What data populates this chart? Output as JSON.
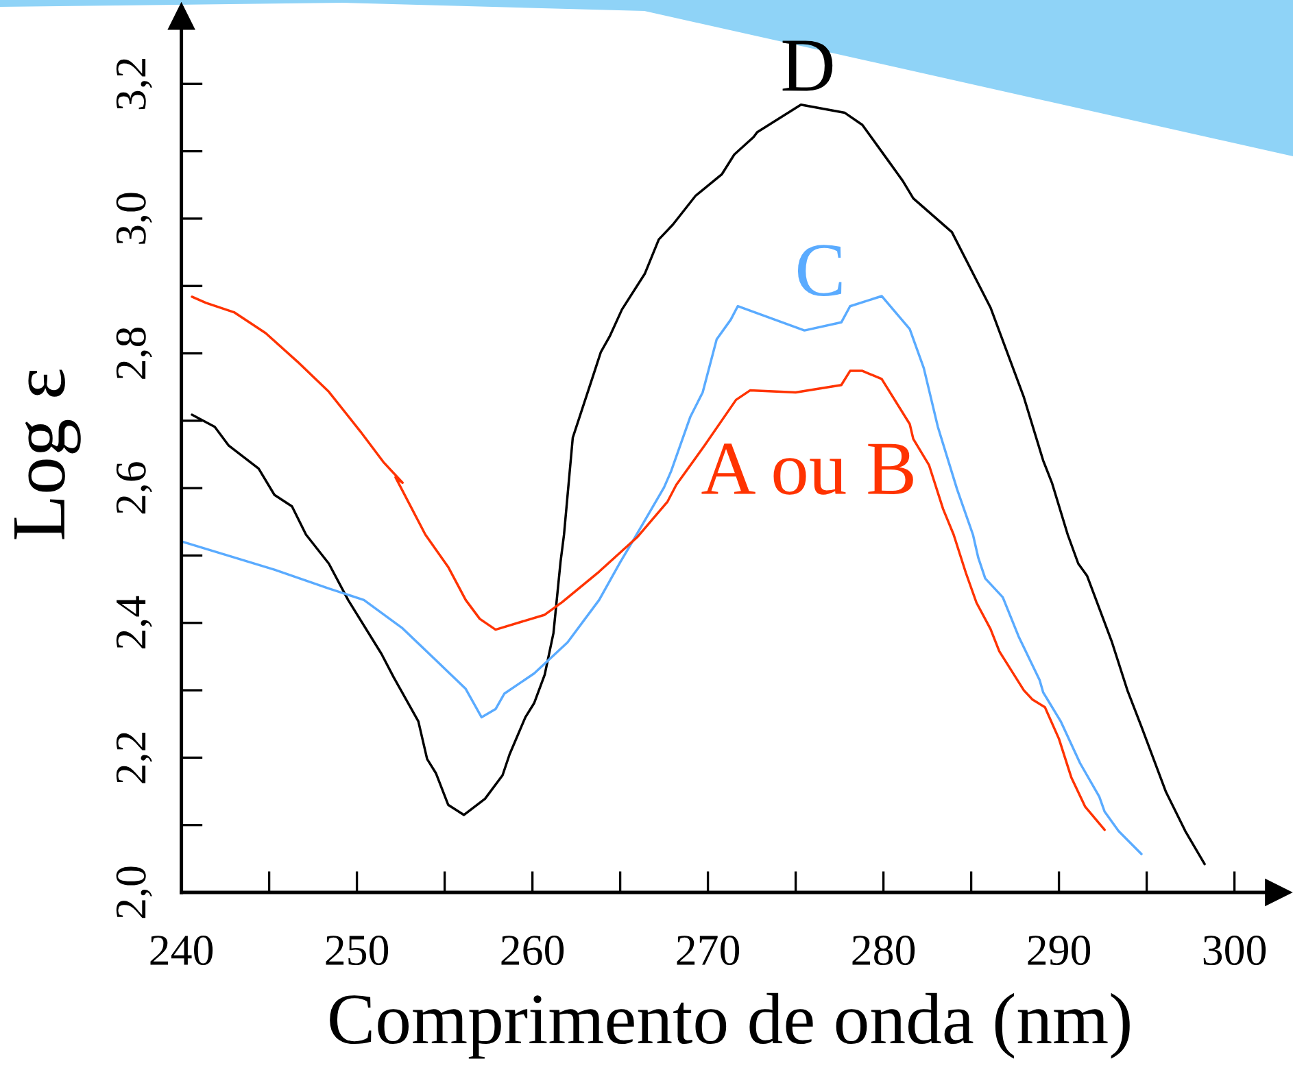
{
  "chart_data": {
    "type": "line",
    "xlabel": "Comprimento de onda (nm)",
    "ylabel": "Log ε",
    "xlim": [
      240,
      302.5
    ],
    "ylim": [
      2.0,
      3.3
    ],
    "xticks": [
      240,
      {
        "value": 245,
        "label": null
      },
      250,
      {
        "value": 255,
        "label": null
      },
      260,
      {
        "value": 265,
        "label": null
      },
      270,
      {
        "value": 275,
        "label": null
      },
      280,
      {
        "value": 285,
        "label": null
      },
      290,
      {
        "value": 295,
        "label": null
      },
      300
    ],
    "yticks": [
      {
        "value": 2.0,
        "label": "2,0"
      },
      {
        "value": 2.1,
        "label": null
      },
      {
        "value": 2.2,
        "label": "2,2"
      },
      {
        "value": 2.3,
        "label": null
      },
      {
        "value": 2.4,
        "label": "2,4"
      },
      {
        "value": 2.5,
        "label": null
      },
      {
        "value": 2.6,
        "label": "2,6"
      },
      {
        "value": 2.7,
        "label": null
      },
      {
        "value": 2.8,
        "label": "2,8"
      },
      {
        "value": 2.9,
        "label": null
      },
      {
        "value": 3.0,
        "label": "3,0"
      },
      {
        "value": 3.1,
        "label": null
      },
      {
        "value": 3.2,
        "label": "3,2"
      }
    ],
    "series": [
      {
        "name": "D",
        "color": "#000000",
        "x": [
          240.6,
          241.9,
          242.7,
          244.4,
          245.3,
          246.3,
          247.1,
          248.4,
          249.5,
          251.4,
          252.1,
          253.5,
          254.0,
          254.5,
          255.2,
          256.1,
          257.3,
          258.3,
          258.7,
          259.6,
          260.1,
          260.7,
          261.2,
          261.6,
          261.8,
          262.3,
          263.6,
          263.9,
          264.4,
          265.1,
          266.4,
          267.2,
          268.0,
          269.3,
          270.8,
          271.5,
          272.6,
          272.8,
          275.3,
          277.8,
          278.8,
          280.3,
          281.1,
          281.7,
          283.9,
          286.1,
          288.0,
          289.1,
          289.6,
          290.5,
          291.1,
          291.6,
          293.0,
          293.9,
          294.7,
          296.1,
          297.2,
          298.3
        ],
        "values": [
          2.709,
          2.691,
          2.663,
          2.629,
          2.59,
          2.573,
          2.531,
          2.488,
          2.434,
          2.354,
          2.319,
          2.254,
          2.198,
          2.177,
          2.13,
          2.115,
          2.139,
          2.174,
          2.205,
          2.26,
          2.281,
          2.323,
          2.385,
          2.49,
          2.531,
          2.675,
          2.778,
          2.802,
          2.825,
          2.865,
          2.918,
          2.969,
          2.991,
          3.034,
          3.066,
          3.095,
          3.121,
          3.128,
          3.169,
          3.157,
          3.139,
          3.085,
          3.056,
          3.03,
          2.98,
          2.868,
          2.735,
          2.641,
          2.608,
          2.531,
          2.488,
          2.47,
          2.373,
          2.3,
          2.246,
          2.149,
          2.091,
          2.042
        ]
      },
      {
        "name": "C",
        "color": "#5aabff",
        "x": [
          240.0,
          245.3,
          248.4,
          250.4,
          252.6,
          254.4,
          256.2,
          257.1,
          257.9,
          258.4,
          260.1,
          262.0,
          263.8,
          265.0,
          265.8,
          267.5,
          267.9,
          269.0,
          269.7,
          270.5,
          271.3,
          271.7,
          275.5,
          277.6,
          278.1,
          279.9,
          281.5,
          282.3,
          283.1,
          284.2,
          285.1,
          285.4,
          285.8,
          286.8,
          287.7,
          288.9,
          289.1,
          290.1,
          291.2,
          292.3,
          292.6,
          293.4,
          294.7
        ],
        "values": [
          2.521,
          2.479,
          2.451,
          2.434,
          2.392,
          2.347,
          2.302,
          2.26,
          2.272,
          2.295,
          2.325,
          2.371,
          2.434,
          2.49,
          2.525,
          2.601,
          2.625,
          2.706,
          2.742,
          2.821,
          2.85,
          2.87,
          2.834,
          2.846,
          2.87,
          2.885,
          2.836,
          2.778,
          2.691,
          2.598,
          2.531,
          2.497,
          2.466,
          2.438,
          2.38,
          2.315,
          2.297,
          2.254,
          2.192,
          2.142,
          2.12,
          2.091,
          2.057
        ]
      },
      {
        "name": "A ou B",
        "color": "#ff3300",
        "x": [
          240.6,
          241.4,
          243.0,
          244.8,
          246.6,
          248.4,
          250.2,
          251.5,
          252.6,
          252.2,
          253.9,
          255.2,
          256.2,
          257.0,
          257.9,
          260.7,
          261.7,
          263.8,
          266.0,
          267.7,
          268.2,
          269.8,
          271.6,
          272.4,
          275.0,
          277.6,
          278.1,
          278.8,
          279.9,
          281.5,
          281.7,
          282.6,
          283.4,
          284.0,
          284.7,
          285.3,
          286.1,
          286.6,
          288.0,
          288.5,
          289.2,
          290.0,
          290.7,
          291.5,
          292.6
        ],
        "values": [
          2.884,
          2.875,
          2.861,
          2.83,
          2.788,
          2.743,
          2.684,
          2.639,
          2.608,
          2.616,
          2.531,
          2.483,
          2.434,
          2.406,
          2.39,
          2.412,
          2.431,
          2.476,
          2.528,
          2.58,
          2.605,
          2.663,
          2.731,
          2.745,
          2.742,
          2.753,
          2.774,
          2.774,
          2.762,
          2.695,
          2.673,
          2.634,
          2.569,
          2.531,
          2.474,
          2.43,
          2.391,
          2.358,
          2.3,
          2.286,
          2.275,
          2.228,
          2.171,
          2.127,
          2.093
        ]
      }
    ]
  }
}
